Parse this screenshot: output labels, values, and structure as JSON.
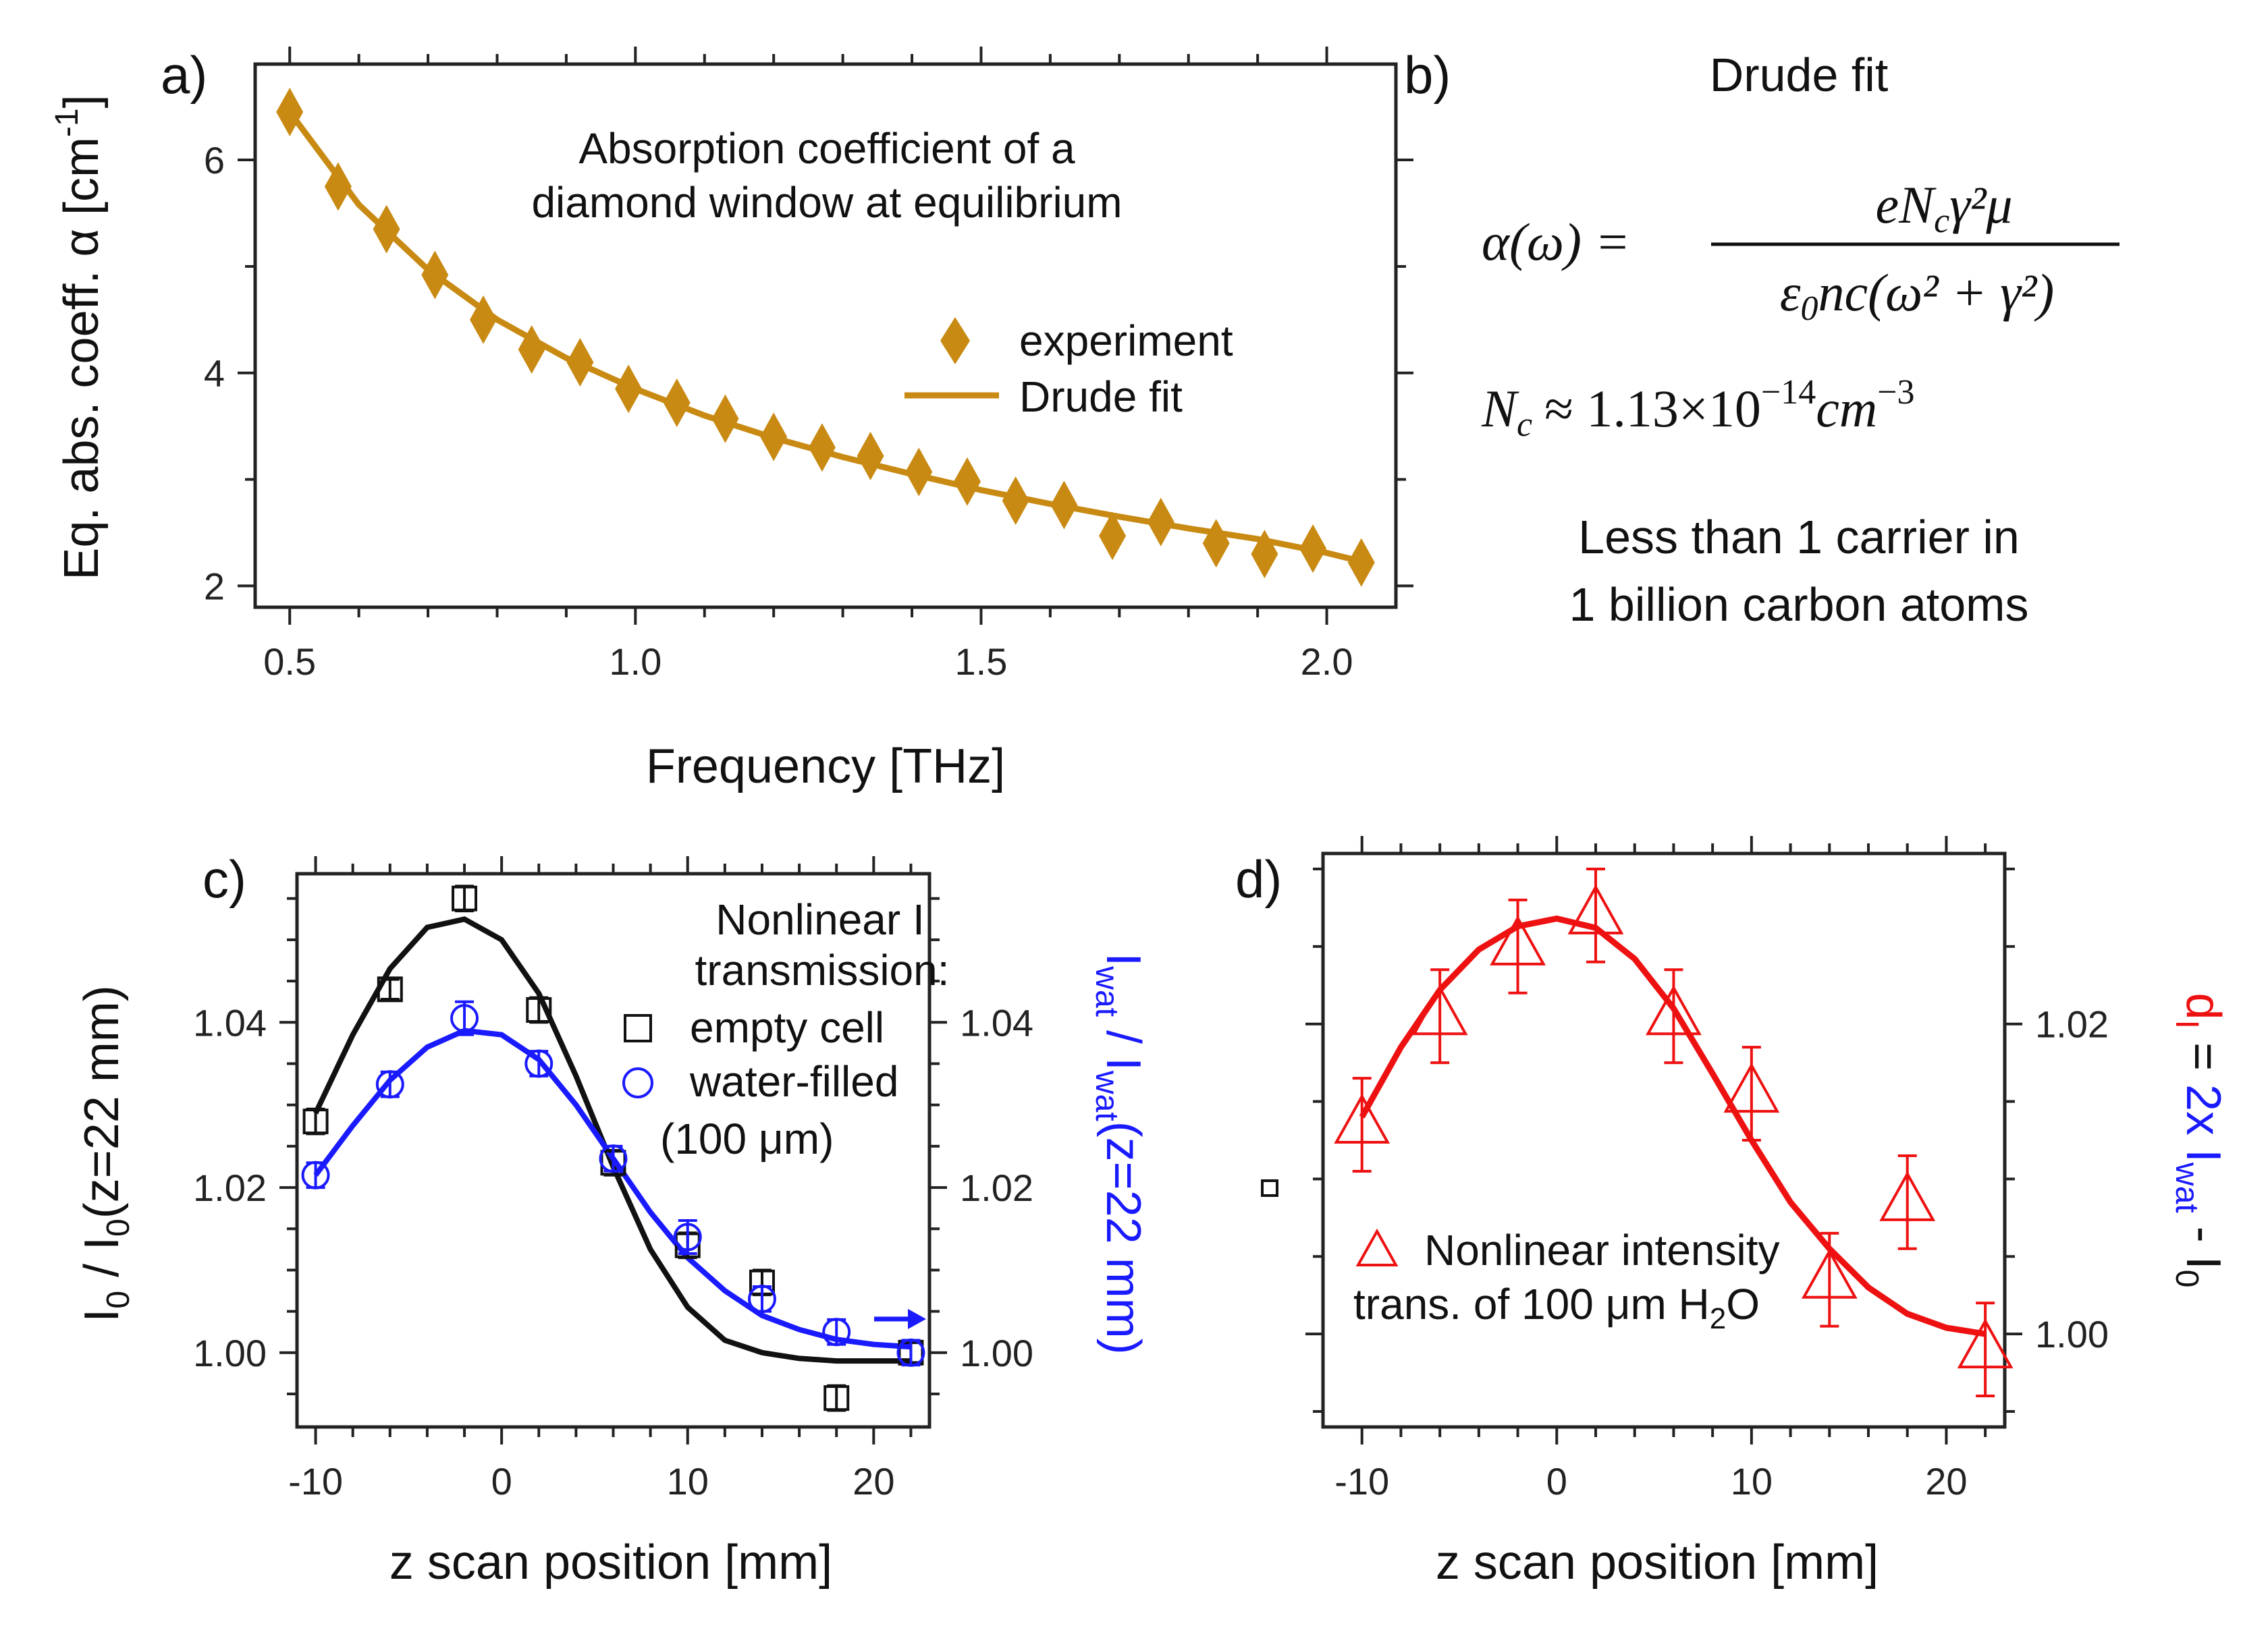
{
  "colors": {
    "gold": "#c88a12",
    "black": "#111111",
    "blue": "#1a1aff",
    "red": "#ee1111"
  },
  "panels": {
    "a": "a)",
    "b": "b)",
    "c": "c)",
    "d": "d)"
  },
  "side_b": {
    "title": "Drude fit",
    "formula_lhs": "α(ω) =",
    "formula_num": "eN",
    "formula_num_sub": "c",
    "formula_num_rest": "γ²μ",
    "formula_den": "ε",
    "formula_den_sub": "0",
    "formula_den_rest": "nc(ω² + γ²)",
    "nc_lhs": "N",
    "nc_sub": "c",
    "nc_rhs": "≈ 1.13×10",
    "nc_exp": "−14",
    "nc_unit": "cm",
    "nc_unit_exp": "−3",
    "line1": "Less than 1 carrier in",
    "line2": "1 billion carbon atoms"
  },
  "chart_data": [
    {
      "id": "a",
      "type": "scatter",
      "annotation_line1": "Absorption coefficient of a",
      "annotation_line2": "diamond window at equilibrium",
      "xlabel": "Frequency [THz]",
      "ylabel": "Eq. abs. coeff. α [cm",
      "ylabel_sup": "-1",
      "ylabel_end": "]",
      "xlim": [
        0.45,
        2.1
      ],
      "ylim": [
        1.8,
        6.9
      ],
      "xticks": [
        "0.5",
        "1.0",
        "1.5",
        "2.0"
      ],
      "xtick_values": [
        0.5,
        1.0,
        1.5,
        2.0
      ],
      "yticks": [
        "2",
        "4",
        "6"
      ],
      "ytick_values": [
        2,
        4,
        6
      ],
      "legend": [
        "experiment",
        "Drude fit"
      ],
      "series": [
        {
          "name": "experiment",
          "marker": "diamond",
          "x": [
            0.5,
            0.57,
            0.64,
            0.71,
            0.78,
            0.85,
            0.92,
            0.99,
            1.06,
            1.13,
            1.2,
            1.27,
            1.34,
            1.41,
            1.48,
            1.55,
            1.62,
            1.69,
            1.76,
            1.84,
            1.91,
            1.98,
            2.05
          ],
          "y": [
            6.45,
            5.75,
            5.35,
            4.92,
            4.5,
            4.22,
            4.1,
            3.85,
            3.72,
            3.57,
            3.4,
            3.3,
            3.22,
            3.07,
            2.98,
            2.8,
            2.76,
            2.47,
            2.6,
            2.4,
            2.3,
            2.35,
            2.22
          ]
        },
        {
          "name": "Drude fit",
          "type": "line",
          "x": [
            0.5,
            0.6,
            0.7,
            0.8,
            0.9,
            1.0,
            1.1,
            1.2,
            1.3,
            1.4,
            1.5,
            1.6,
            1.7,
            1.8,
            1.9,
            2.0,
            2.05
          ],
          "y": [
            6.45,
            5.58,
            4.97,
            4.5,
            4.14,
            3.85,
            3.6,
            3.39,
            3.21,
            3.05,
            2.9,
            2.77,
            2.65,
            2.54,
            2.44,
            2.31,
            2.23
          ]
        }
      ]
    },
    {
      "id": "c",
      "type": "scatter",
      "xlabel": "z scan position [mm]",
      "ylabel": "I",
      "ylabel_sub": "0",
      "ylabel_mid": " / I",
      "ylabel_sub2": "0",
      "ylabel_end": "(z=22 mm)",
      "y2label": "I",
      "y2label_sub": "wat",
      "y2label_mid": " / I",
      "y2label_sub2": "wat",
      "y2label_end": "(z=22 mm)",
      "xlim": [
        -11,
        23
      ],
      "ylim": [
        0.991,
        1.058
      ],
      "xticks": [
        "-10",
        "0",
        "10",
        "20"
      ],
      "xtick_values": [
        -10,
        0,
        10,
        20
      ],
      "yticks": [
        "1.00",
        "1.02",
        "1.04"
      ],
      "ytick_values": [
        1.0,
        1.02,
        1.04
      ],
      "y2ticks": [
        "1.00",
        "1.02",
        "1.04"
      ],
      "legend_title_line1": "Nonlinear I",
      "legend_title_line2": "transmission:",
      "legend": [
        "empty cell",
        "water-filled",
        "(100 μm)"
      ],
      "series": [
        {
          "name": "empty cell",
          "marker": "square",
          "x": [
            -10,
            -6,
            -2,
            2,
            6,
            10,
            14,
            18,
            22
          ],
          "y": [
            1.028,
            1.044,
            1.055,
            1.0415,
            1.023,
            1.013,
            1.0085,
            0.9945,
            1.0
          ],
          "err": [
            0.0015,
            0.0012,
            0.0015,
            0.0015,
            0.0015,
            0.0015,
            0.0015,
            0.0015,
            0.0012
          ]
        },
        {
          "name": "water-filled",
          "marker": "circle",
          "x": [
            -10,
            -6,
            -2,
            2,
            6,
            10,
            14,
            18,
            22
          ],
          "y": [
            1.0215,
            1.0325,
            1.0405,
            1.035,
            1.0235,
            1.014,
            1.0065,
            1.0025,
            1.0
          ],
          "err": [
            0.0015,
            0.0015,
            0.002,
            0.0015,
            0.0015,
            0.002,
            0.0015,
            0.0015,
            0.0015
          ]
        },
        {
          "name": "empty cell fit",
          "type": "line",
          "x": [
            -10,
            -8,
            -6,
            -4,
            -2,
            0,
            2,
            4,
            6,
            8,
            10,
            12,
            14,
            16,
            18,
            20,
            22
          ],
          "y": [
            1.029,
            1.0385,
            1.0465,
            1.0515,
            1.0525,
            1.05,
            1.0435,
            1.0335,
            1.0225,
            1.0125,
            1.0055,
            1.0015,
            1.0,
            0.9993,
            0.999,
            0.999,
            0.999
          ]
        },
        {
          "name": "water-filled fit",
          "type": "line",
          "x": [
            -10,
            -8,
            -6,
            -4,
            -2,
            0,
            2,
            4,
            6,
            8,
            10,
            12,
            14,
            16,
            18,
            20,
            22
          ],
          "y": [
            1.0215,
            1.0275,
            1.033,
            1.037,
            1.039,
            1.0385,
            1.0355,
            1.03,
            1.0235,
            1.017,
            1.0115,
            1.0075,
            1.0045,
            1.0028,
            1.0016,
            1.001,
            1.0007
          ]
        }
      ]
    },
    {
      "id": "d",
      "type": "scatter",
      "xlabel": "z scan position [mm]",
      "y2label_d": "d",
      "y2label_d_sub": "I",
      "y2label_eq": " = ",
      "y2label_blue": "2x I",
      "y2label_blue_sub": "wat",
      "y2label_rest": " - I",
      "y2label_rest_sub": "0",
      "xlim": [
        -12,
        23
      ],
      "ylim": [
        0.994,
        1.031
      ],
      "xticks": [
        "-10",
        "0",
        "10",
        "20"
      ],
      "xtick_values": [
        -10,
        0,
        10,
        20
      ],
      "y2ticks": [
        "1.00",
        "1.02"
      ],
      "y2tick_values": [
        1.0,
        1.02
      ],
      "legend": [
        "Nonlinear intensity",
        "trans. of 100 μm H",
        "2",
        "O"
      ],
      "series": [
        {
          "name": "Nonlinear intensity trans. of 100 μm H2O",
          "marker": "triangle",
          "x": [
            -10,
            -6,
            -2,
            2,
            6,
            10,
            14,
            18,
            22
          ],
          "y": [
            1.0135,
            1.0205,
            1.025,
            1.027,
            1.0205,
            1.0155,
            1.0035,
            1.0085,
            0.999
          ],
          "err": [
            0.003,
            0.003,
            0.003,
            0.003,
            0.003,
            0.003,
            0.003,
            0.003,
            0.003
          ]
        },
        {
          "name": "fit",
          "type": "line",
          "x": [
            -10,
            -8,
            -6,
            -4,
            -2,
            0,
            2,
            4,
            6,
            8,
            10,
            12,
            14,
            16,
            18,
            20,
            22
          ],
          "y": [
            1.014,
            1.0185,
            1.0222,
            1.0248,
            1.0263,
            1.0268,
            1.0262,
            1.0242,
            1.021,
            1.0168,
            1.0125,
            1.0085,
            1.0055,
            1.003,
            1.0013,
            1.0004,
            1.0
          ]
        }
      ]
    }
  ]
}
